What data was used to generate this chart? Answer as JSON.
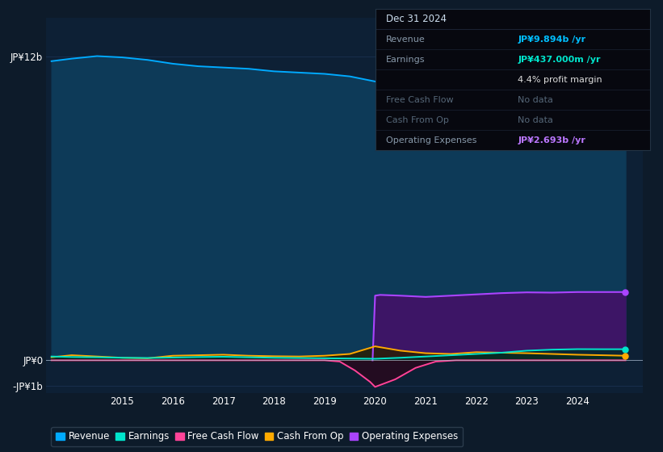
{
  "bg_color": "#0d1b2a",
  "chart_bg": "#0d2035",
  "ylim": [
    -1300000000.0,
    13500000000.0
  ],
  "xlim": [
    2013.5,
    2025.3
  ],
  "xticks": [
    2015,
    2016,
    2017,
    2018,
    2019,
    2020,
    2021,
    2022,
    2023,
    2024
  ],
  "years_revenue": [
    2013.6,
    2014.0,
    2014.5,
    2015.0,
    2015.5,
    2016.0,
    2016.5,
    2017.0,
    2017.5,
    2018.0,
    2018.5,
    2019.0,
    2019.5,
    2020.0,
    2020.5,
    2021.0,
    2021.5,
    2022.0,
    2022.5,
    2023.0,
    2023.5,
    2024.0,
    2024.5,
    2024.95
  ],
  "revenue": [
    11800000000.0,
    11900000000.0,
    12000000000.0,
    11950000000.0,
    11850000000.0,
    11700000000.0,
    11600000000.0,
    11550000000.0,
    11500000000.0,
    11400000000.0,
    11350000000.0,
    11300000000.0,
    11200000000.0,
    11000000000.0,
    10700000000.0,
    10500000000.0,
    10300000000.0,
    10150000000.0,
    10050000000.0,
    9900000000.0,
    9800000000.0,
    9850000000.0,
    9900000000.0,
    9894000000.0
  ],
  "revenue_color": "#00aaff",
  "revenue_fill": "#0d3a58",
  "years_earnings": [
    2013.6,
    2014.0,
    2014.5,
    2015.0,
    2015.5,
    2016.0,
    2016.5,
    2017.0,
    2017.5,
    2018.0,
    2018.5,
    2019.0,
    2019.5,
    2020.0,
    2020.5,
    2021.0,
    2021.5,
    2022.0,
    2022.5,
    2023.0,
    2023.5,
    2024.0,
    2024.5,
    2024.95
  ],
  "earnings": [
    150000000.0,
    130000000.0,
    120000000.0,
    100000000.0,
    90000000.0,
    110000000.0,
    130000000.0,
    140000000.0,
    120000000.0,
    100000000.0,
    90000000.0,
    80000000.0,
    70000000.0,
    60000000.0,
    100000000.0,
    150000000.0,
    200000000.0,
    250000000.0,
    300000000.0,
    380000000.0,
    420000000.0,
    440000000.0,
    437000000.0,
    437000000.0
  ],
  "earnings_color": "#00e5cc",
  "years_fcf": [
    2013.6,
    2014.0,
    2014.5,
    2015.0,
    2015.5,
    2016.0,
    2016.5,
    2017.0,
    2017.5,
    2018.0,
    2018.5,
    2019.0,
    2019.3,
    2019.6,
    2019.9,
    2020.0,
    2020.4,
    2020.8,
    2021.2,
    2021.6,
    2022.0,
    2022.5,
    2023.0,
    2023.5,
    2024.0,
    2024.5,
    2024.95
  ],
  "fcf": [
    0.0,
    0.0,
    0.0,
    0.0,
    0.0,
    0.0,
    0.0,
    0.0,
    0.0,
    0.0,
    0.0,
    0.0,
    -50000000.0,
    -400000000.0,
    -850000000.0,
    -1050000000.0,
    -750000000.0,
    -300000000.0,
    -50000000.0,
    0.0,
    0.0,
    0.0,
    0.0,
    0.0,
    0.0,
    0.0,
    0.0
  ],
  "fcf_color": "#ff4499",
  "years_cfo": [
    2013.6,
    2014.0,
    2014.5,
    2015.0,
    2015.5,
    2016.0,
    2016.5,
    2017.0,
    2017.5,
    2018.0,
    2018.5,
    2019.0,
    2019.5,
    2020.0,
    2020.5,
    2021.0,
    2021.5,
    2022.0,
    2022.5,
    2023.0,
    2023.5,
    2024.0,
    2024.5,
    2024.95
  ],
  "cfo": [
    120000000.0,
    200000000.0,
    150000000.0,
    100000000.0,
    80000000.0,
    180000000.0,
    200000000.0,
    220000000.0,
    180000000.0,
    160000000.0,
    150000000.0,
    180000000.0,
    250000000.0,
    550000000.0,
    380000000.0,
    280000000.0,
    250000000.0,
    320000000.0,
    300000000.0,
    280000000.0,
    250000000.0,
    220000000.0,
    200000000.0,
    180000000.0
  ],
  "cfo_color": "#ffaa00",
  "years_opex": [
    2019.95,
    2020.0,
    2020.1,
    2020.5,
    2021.0,
    2021.5,
    2022.0,
    2022.5,
    2023.0,
    2023.5,
    2024.0,
    2024.5,
    2024.95
  ],
  "opex": [
    0.0,
    2550000000.0,
    2580000000.0,
    2550000000.0,
    2500000000.0,
    2550000000.0,
    2600000000.0,
    2650000000.0,
    2680000000.0,
    2670000000.0,
    2693000000.0,
    2693000000.0,
    2693000000.0
  ],
  "opex_color": "#aa44ff",
  "opex_fill": "#3d1566",
  "legend": [
    {
      "label": "Revenue",
      "color": "#00aaff"
    },
    {
      "label": "Earnings",
      "color": "#00e5cc"
    },
    {
      "label": "Free Cash Flow",
      "color": "#ff4499"
    },
    {
      "label": "Cash From Op",
      "color": "#ffaa00"
    },
    {
      "label": "Operating Expenses",
      "color": "#aa44ff"
    }
  ],
  "infobox": {
    "header": "Dec 31 2024",
    "header_color": "#ccddee",
    "rows": [
      {
        "label": "Revenue",
        "value": "JP¥9.894b /yr",
        "value_color": "#00bfff",
        "label_color": "#8899aa"
      },
      {
        "label": "Earnings",
        "value": "JP¥437.000m /yr",
        "value_color": "#00e5cc",
        "label_color": "#8899aa"
      },
      {
        "label": "",
        "value": "4.4% profit margin",
        "value_color": "#dddddd",
        "label_color": "#8899aa"
      },
      {
        "label": "Free Cash Flow",
        "value": "No data",
        "value_color": "#556677",
        "label_color": "#556677"
      },
      {
        "label": "Cash From Op",
        "value": "No data",
        "value_color": "#556677",
        "label_color": "#556677"
      },
      {
        "label": "Operating Expenses",
        "value": "JP¥2.693b /yr",
        "value_color": "#bb77ff",
        "label_color": "#8899aa"
      }
    ],
    "bg_color": "#07080f",
    "border_color": "#223344",
    "line_color": "#1a2233"
  }
}
